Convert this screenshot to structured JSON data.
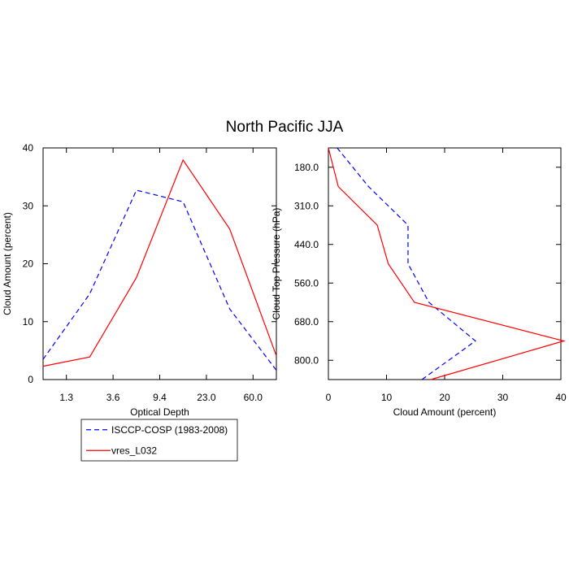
{
  "title": "North Pacific JJA",
  "chart_data": [
    {
      "type": "line",
      "orientation": "vertical",
      "xlabel": "Optical Depth",
      "ylabel": "Cloud Amount (percent)",
      "x": [
        0,
        1,
        2,
        3,
        4,
        5
      ],
      "xlim": [
        0,
        5
      ],
      "xticks": [
        {
          "value": 0.5,
          "label": "1.3"
        },
        {
          "value": 1.5,
          "label": "3.6"
        },
        {
          "value": 2.5,
          "label": "9.4"
        },
        {
          "value": 3.5,
          "label": "23.0"
        },
        {
          "value": 4.5,
          "label": "60.0"
        }
      ],
      "ylim": [
        0,
        40
      ],
      "yticks": [
        0,
        10,
        20,
        30,
        40
      ],
      "legend": "below",
      "series": [
        {
          "name": "ISCCP-COSP (1983-2008)",
          "color": "#0000ff",
          "dashed": true,
          "values": [
            3.5,
            14.8,
            32.7,
            30.7,
            12.2,
            1.6
          ]
        },
        {
          "name": "vres_L032",
          "color": "#ff0000",
          "dashed": false,
          "values": [
            2.3,
            3.9,
            17.6,
            37.9,
            26.0,
            4.1
          ]
        }
      ]
    },
    {
      "type": "line",
      "orientation": "horizontal",
      "xlabel": "Cloud Amount (percent)",
      "ylabel": "Cloud Top Pressure (hPa)",
      "y": [
        0,
        1,
        2,
        3,
        4,
        5,
        6
      ],
      "ylim": [
        0,
        6
      ],
      "yticks": [
        {
          "value": 0.5,
          "label": "180.0"
        },
        {
          "value": 1.5,
          "label": "310.0"
        },
        {
          "value": 2.5,
          "label": "440.0"
        },
        {
          "value": 3.5,
          "label": "560.0"
        },
        {
          "value": 4.5,
          "label": "680.0"
        },
        {
          "value": 5.5,
          "label": "800.0"
        }
      ],
      "xlim": [
        0,
        40
      ],
      "xticks": [
        0,
        10,
        20,
        30,
        40
      ],
      "series": [
        {
          "color": "#0000ff",
          "dashed": true,
          "values": [
            1.5,
            6.9,
            13.7,
            13.7,
            17.3,
            25.3,
            16.1
          ]
        },
        {
          "color": "#ff0000",
          "dashed": false,
          "values": [
            0,
            1.7,
            8.4,
            10.3,
            14.8,
            40.5,
            17.6
          ]
        }
      ]
    }
  ]
}
